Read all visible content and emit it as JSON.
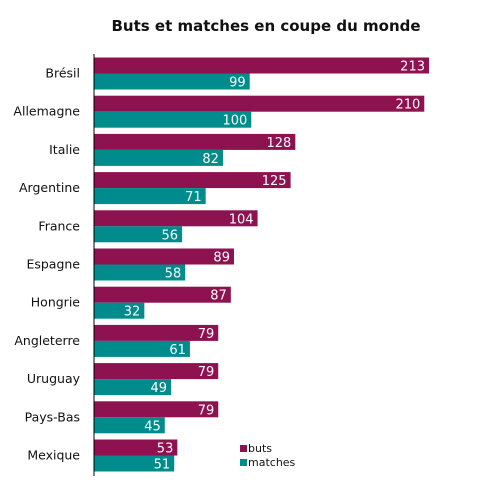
{
  "chart_data": {
    "type": "bar",
    "orientation": "horizontal",
    "title": "Buts et matches en coupe du monde",
    "categories": [
      "Brésil",
      "Allemagne",
      "Italie",
      "Argentine",
      "France",
      "Espagne",
      "Hongrie",
      "Angleterre",
      "Uruguay",
      "Pays-Bas",
      "Mexique"
    ],
    "series": [
      {
        "name": "buts",
        "color": "#8e1150",
        "values": [
          213,
          210,
          128,
          125,
          104,
          89,
          87,
          79,
          79,
          79,
          53
        ]
      },
      {
        "name": "matches",
        "color": "#008c8c",
        "values": [
          99,
          100,
          82,
          71,
          56,
          58,
          32,
          61,
          49,
          45,
          51
        ]
      }
    ],
    "xlim": [
      0,
      213
    ],
    "grid": false,
    "legend_position": "bottom-right",
    "data_labels": true
  }
}
